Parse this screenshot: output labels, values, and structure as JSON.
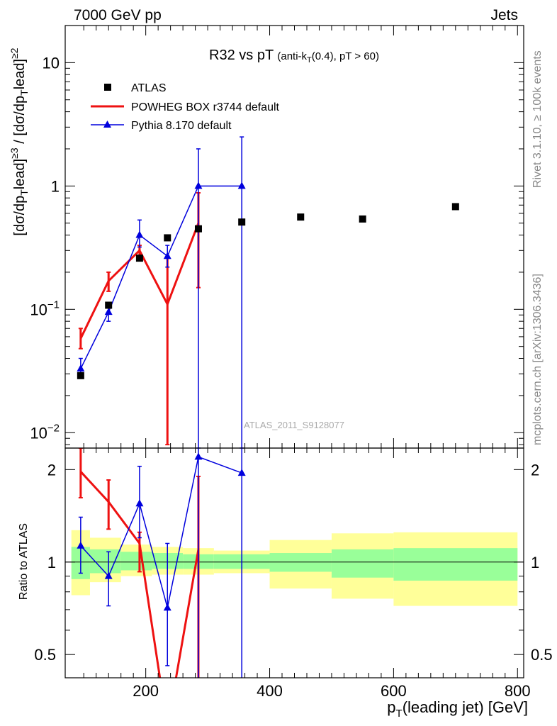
{
  "header": {
    "left": "7000 GeV pp",
    "right": "Jets"
  },
  "side_labels": {
    "top": "Rivet 3.1.10, ≥ 100k events",
    "bottom": "mcplots.cern.ch [arXiv:1306.3436]"
  },
  "watermark": "ATLAS_2011_S9128077",
  "colors": {
    "atlas": "#000000",
    "powheg": "#ee1111",
    "pythia": "#0000dd",
    "band_inner": "#99ff99",
    "band_outer": "#ffff99"
  },
  "chart_data": [
    {
      "type": "line",
      "panel": "main",
      "title": "R32 vs pT",
      "title_sub": "(anti-k",
      "title_sub_index": "T",
      "title_sub_tail": "(0.4), pT > 60)",
      "ylabel": "[dσ/dp_T^lead]^{≥3} / [dσ/dp_T^lead]^{≥2}",
      "yscale": "log",
      "xlim": [
        70,
        810
      ],
      "ylim": [
        0.0075,
        20
      ],
      "y_ticks": [
        {
          "value": 0.01,
          "base": "10",
          "exp": "−2"
        },
        {
          "value": 0.1,
          "base": "10",
          "exp": "−1"
        },
        {
          "value": 1,
          "base": "1",
          "exp": ""
        },
        {
          "value": 10,
          "base": "10",
          "exp": ""
        }
      ],
      "legend": [
        {
          "name": "ATLAS",
          "marker": "square"
        },
        {
          "name": "POWHEG BOX r3744 default",
          "marker": "line"
        },
        {
          "name": "Pythia 8.170 default",
          "marker": "triangle"
        }
      ],
      "series": [
        {
          "name": "ATLAS",
          "x": [
            95,
            140,
            190,
            235,
            285,
            355,
            450,
            550,
            700
          ],
          "values": [
            0.029,
            0.108,
            0.26,
            0.38,
            0.45,
            0.51,
            0.56,
            0.54,
            0.68
          ]
        },
        {
          "name": "POWHEG BOX r3744 default",
          "x": [
            95,
            140,
            190,
            235,
            285
          ],
          "values": [
            0.058,
            0.17,
            0.3,
            0.11,
            0.5
          ],
          "err_lo": [
            0.048,
            0.14,
            0.25,
            0.008,
            0.15
          ],
          "err_hi": [
            0.07,
            0.2,
            0.33,
            0.26,
            0.88
          ]
        },
        {
          "name": "Pythia 8.170 default",
          "x": [
            95,
            140,
            190,
            235,
            285,
            355
          ],
          "values": [
            0.033,
            0.095,
            0.4,
            0.27,
            1.0,
            1.0
          ],
          "err_lo": [
            0.028,
            0.08,
            0.32,
            0.22,
            0.0075,
            0.0075
          ],
          "err_hi": [
            0.04,
            0.11,
            0.53,
            0.33,
            2.0,
            2.5
          ]
        }
      ]
    },
    {
      "type": "line",
      "panel": "ratio",
      "ylabel": "Ratio to ATLAS",
      "xlabel": "p_T(leading jet) [GeV]",
      "xlabel_main": "p",
      "xlabel_index": "T",
      "xlabel_tail": "(leading jet) [GeV]",
      "yscale": "log",
      "xlim": [
        70,
        810
      ],
      "ylim": [
        0.42,
        2.35
      ],
      "x_ticks": [
        200,
        400,
        600,
        800
      ],
      "y_ticks": [
        0.5,
        1,
        2
      ],
      "reference_line": 1,
      "bands": [
        {
          "x0": 80,
          "x1": 110,
          "inner": [
            0.88,
            1.12
          ],
          "outer": [
            0.78,
            1.27
          ]
        },
        {
          "x0": 110,
          "x1": 160,
          "inner": [
            0.92,
            1.1
          ],
          "outer": [
            0.86,
            1.2
          ]
        },
        {
          "x0": 160,
          "x1": 210,
          "inner": [
            0.94,
            1.08
          ],
          "outer": [
            0.9,
            1.14
          ]
        },
        {
          "x0": 210,
          "x1": 260,
          "inner": [
            0.95,
            1.07
          ],
          "outer": [
            0.91,
            1.12
          ]
        },
        {
          "x0": 260,
          "x1": 310,
          "inner": [
            0.95,
            1.06
          ],
          "outer": [
            0.91,
            1.11
          ]
        },
        {
          "x0": 310,
          "x1": 400,
          "inner": [
            0.95,
            1.06
          ],
          "outer": [
            0.92,
            1.09
          ]
        },
        {
          "x0": 400,
          "x1": 500,
          "inner": [
            0.93,
            1.07
          ],
          "outer": [
            0.82,
            1.18
          ]
        },
        {
          "x0": 500,
          "x1": 600,
          "inner": [
            0.89,
            1.1
          ],
          "outer": [
            0.76,
            1.24
          ]
        },
        {
          "x0": 600,
          "x1": 800,
          "inner": [
            0.87,
            1.11
          ],
          "outer": [
            0.72,
            1.25
          ]
        }
      ],
      "series": [
        {
          "name": "POWHEG BOX r3744 default",
          "x": [
            95,
            140,
            190,
            235,
            285
          ],
          "values": [
            1.97,
            1.57,
            1.15,
            0.29,
            1.1
          ],
          "err_lo": [
            1.62,
            1.28,
            0.93,
            0.25,
            0.25
          ],
          "err_hi": [
            2.35,
            1.85,
            1.25,
            0.34,
            1.9
          ]
        },
        {
          "name": "Pythia 8.170 default",
          "x": [
            95,
            140,
            190,
            235,
            285,
            355
          ],
          "values": [
            1.13,
            0.9,
            1.55,
            0.71,
            2.2,
            1.95
          ],
          "err_lo": [
            0.92,
            0.72,
            1.2,
            0.46,
            0.25,
            0.25
          ],
          "err_hi": [
            1.4,
            1.08,
            2.05,
            1.15,
            2.35,
            2.35
          ]
        }
      ]
    }
  ]
}
